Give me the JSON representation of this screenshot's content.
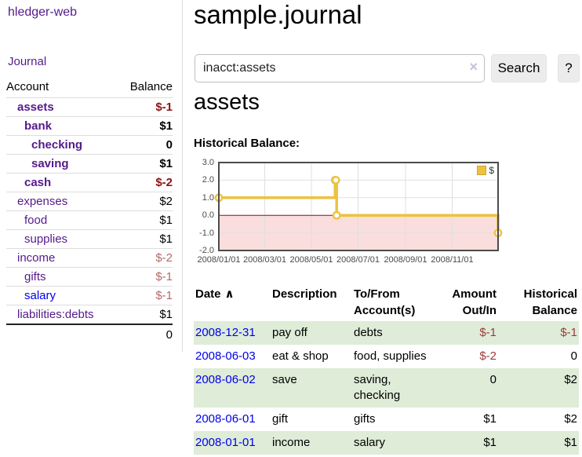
{
  "app": {
    "brand": "hledger-web",
    "nav_journal": "Journal"
  },
  "sidebar": {
    "col_account": "Account",
    "col_balance": "Balance",
    "accounts": [
      {
        "name": "assets",
        "indent": 1,
        "bold": true,
        "balance": "$-1",
        "balance_class": "neg-bold"
      },
      {
        "name": "bank",
        "indent": 2,
        "bold": true,
        "balance": "$1",
        "balance_class": "pos-bold"
      },
      {
        "name": "checking",
        "indent": 3,
        "bold": true,
        "balance": "0",
        "balance_class": "pos-bold"
      },
      {
        "name": "saving",
        "indent": 3,
        "bold": true,
        "balance": "$1",
        "balance_class": "pos-bold"
      },
      {
        "name": "cash",
        "indent": 2,
        "bold": true,
        "balance": "$-2",
        "balance_class": "neg-bold"
      },
      {
        "name": "expenses",
        "indent": 1,
        "bold": false,
        "balance": "$2",
        "balance_class": "pos"
      },
      {
        "name": "food",
        "indent": 2,
        "bold": false,
        "balance": "$1",
        "balance_class": "pos"
      },
      {
        "name": "supplies",
        "indent": 2,
        "bold": false,
        "balance": "$1",
        "balance_class": "pos"
      },
      {
        "name": "income",
        "indent": 1,
        "bold": false,
        "balance": "$-2",
        "balance_class": "neg-dim"
      },
      {
        "name": "gifts",
        "indent": 2,
        "bold": false,
        "balance": "$-1",
        "balance_class": "neg-dim"
      },
      {
        "name": "salary",
        "indent": 2,
        "bold": false,
        "fresh": true,
        "balance": "$-1",
        "balance_class": "neg-dim"
      },
      {
        "name": "liabilities:debts",
        "indent": 1,
        "bold": false,
        "balance": "$1",
        "balance_class": "pos"
      }
    ],
    "total": "0"
  },
  "main": {
    "title": "sample.journal",
    "search": {
      "value": "inacct:assets",
      "clear_icon": "×",
      "button_label": "Search",
      "help_label": "?"
    },
    "account_heading": "assets",
    "chart_data": {
      "type": "line",
      "title": "Historical Balance:",
      "x_ticks": [
        "2008/01/01",
        "2008/03/01",
        "2008/05/01",
        "2008/07/01",
        "2008/09/01",
        "2008/11/01"
      ],
      "y_ticks": [
        "3.0",
        "2.0",
        "1.0",
        "0.0",
        "-1.0",
        "-2.0"
      ],
      "xlim": [
        "2008-01-01",
        "2008-12-31"
      ],
      "ylim": [
        -2,
        3
      ],
      "legend": {
        "label": "$",
        "color": "#EDC240",
        "position": "top-right"
      },
      "series": [
        {
          "name": "$",
          "color": "#EDC240",
          "steps": true,
          "points": [
            [
              "2008-01-01",
              1
            ],
            [
              "2008-06-01",
              2
            ],
            [
              "2008-06-02",
              2
            ],
            [
              "2008-06-03",
              0
            ],
            [
              "2008-12-31",
              -1
            ]
          ]
        }
      ],
      "colors": {
        "negative_region": "#fadddd",
        "zero_line": "#8f1010",
        "grid": "#e0e0e0",
        "border": "#4c4c4c"
      }
    },
    "register": {
      "sort_icon": "∧",
      "columns": [
        "Date",
        "Description",
        "To/From Account(s)",
        "Amount Out/In",
        "Historical Balance"
      ],
      "rows": [
        {
          "date": "2008-12-31",
          "description": "pay off",
          "accounts": "debts",
          "amount": "$-1",
          "amount_negative": true,
          "balance": "$-1",
          "balance_negative": true
        },
        {
          "date": "2008-06-03",
          "description": "eat & shop",
          "accounts": "food, supplies",
          "amount": "$-2",
          "amount_negative": true,
          "balance": "0",
          "balance_negative": false
        },
        {
          "date": "2008-06-02",
          "description": "save",
          "accounts": "saving, checking",
          "amount": "0",
          "amount_negative": false,
          "balance": "$2",
          "balance_negative": false
        },
        {
          "date": "2008-06-01",
          "description": "gift",
          "accounts": "gifts",
          "amount": "$1",
          "amount_negative": false,
          "balance": "$2",
          "balance_negative": false
        },
        {
          "date": "2008-01-01",
          "description": "income",
          "accounts": "salary",
          "amount": "$1",
          "amount_negative": false,
          "balance": "$1",
          "balance_negative": false
        }
      ]
    }
  },
  "colors": {
    "link_purple": "#551a8b",
    "link_blue": "#0000ee",
    "negative_bold": "#8b1414",
    "negative_dim": "#b36b6b",
    "negative": "#9d3b3b",
    "row_green": "#deecd8",
    "series_yellow": "#EDC240"
  }
}
